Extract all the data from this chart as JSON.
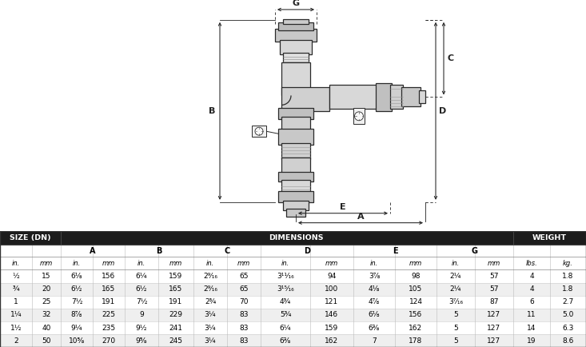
{
  "header_bg": "#1a1a1a",
  "header_fg": "#ffffff",
  "col_bounds": [
    0,
    40,
    76,
    116,
    156,
    198,
    242,
    284,
    326,
    388,
    442,
    494,
    546,
    594,
    642,
    688,
    733
  ],
  "letters": [
    [
      "A",
      76,
      156
    ],
    [
      "B",
      156,
      242
    ],
    [
      "C",
      242,
      326
    ],
    [
      "D",
      326,
      442
    ],
    [
      "E",
      442,
      546
    ],
    [
      "G",
      546,
      642
    ]
  ],
  "subhdr": [
    "in.",
    "mm",
    "in.",
    "mm",
    "in.",
    "mm",
    "in.",
    "mm",
    "in.",
    "mm",
    "in.",
    "mm",
    "in.",
    "mm",
    "lbs.",
    "kg."
  ],
  "rows": [
    [
      "½",
      "15",
      "6⅛",
      "156",
      "6¼",
      "159",
      "2⁹⁄₁₆",
      "65",
      "3¹¹⁄₁₆",
      "94",
      "3⅞",
      "98",
      "2¼",
      "57",
      "4",
      "1.8"
    ],
    [
      "¾",
      "20",
      "6½",
      "165",
      "6½",
      "165",
      "2⁹⁄₁₆",
      "65",
      "3¹⁵⁄₁₆",
      "100",
      "4⅛",
      "105",
      "2¼",
      "57",
      "4",
      "1.8"
    ],
    [
      "1",
      "25",
      "7½",
      "191",
      "7½",
      "191",
      "2¾",
      "70",
      "4¾",
      "121",
      "4⅞",
      "124",
      "3⁷⁄₁₆",
      "87",
      "6",
      "2.7"
    ],
    [
      "1¼",
      "32",
      "8⅞",
      "225",
      "9",
      "229",
      "3¼",
      "83",
      "5¾",
      "146",
      "6⅛",
      "156",
      "5",
      "127",
      "11",
      "5.0"
    ],
    [
      "1½",
      "40",
      "9¼",
      "235",
      "9½",
      "241",
      "3¼",
      "83",
      "6¼",
      "159",
      "6⅜",
      "162",
      "5",
      "127",
      "14",
      "6.3"
    ],
    [
      "2",
      "50",
      "10⅝",
      "270",
      "9⅝",
      "245",
      "3¼",
      "83",
      "6⅜",
      "162",
      "7",
      "178",
      "5",
      "127",
      "19",
      "8.6"
    ]
  ],
  "draw_color": "#2a2a2a",
  "dim_color": "#222222"
}
